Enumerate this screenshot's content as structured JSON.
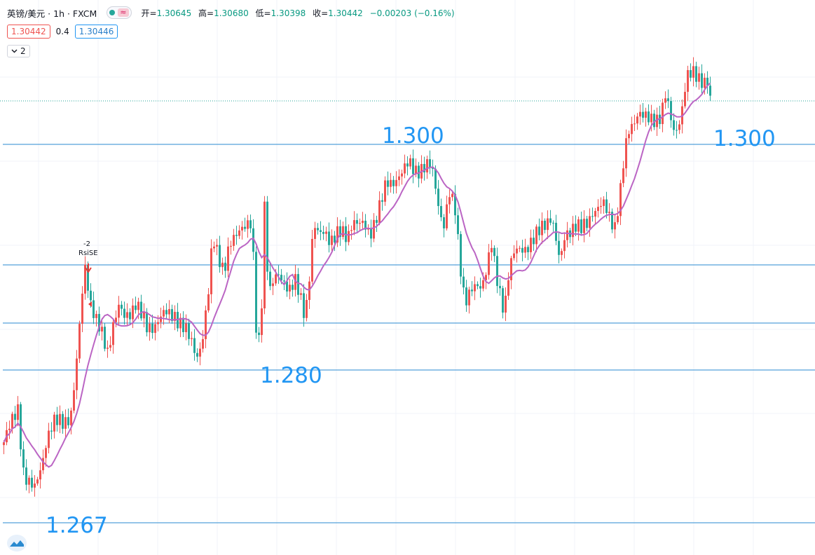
{
  "legend": {
    "symbol": "英镑/美元 · 1h · FXCM",
    "open_label": "开=",
    "open": "1.30645",
    "high_label": "高=",
    "high": "1.30680",
    "low_label": "低=",
    "low": "1.30398",
    "close_label": "收=",
    "close": "1.30442",
    "change": "−0.00203 (−0.16%)",
    "wave_icon": "≈"
  },
  "quotes": {
    "bid": "1.30442",
    "spread": "0.4",
    "ask": "1.30446"
  },
  "indicators_toggle": {
    "count": "2",
    "icon": "chevron-down-icon"
  },
  "level_labels": [
    {
      "text": "1.300"
    },
    {
      "text": "1.300"
    },
    {
      "text": "1.280"
    },
    {
      "text": "1.267"
    }
  ],
  "signal": {
    "value": "-2",
    "name": "RsiSE"
  },
  "colors": {
    "up": "#ef5350",
    "down": "#26a69a",
    "ma": "#bb65c4",
    "hline": "#2a8ad0",
    "label": "#2196f3",
    "priceline": "#26a69a"
  },
  "chart_data": {
    "type": "candlestick",
    "symbol": "英镑/美元",
    "interval": "1h",
    "horizontal_levels": [
      1.2667,
      1.2798,
      1.2812,
      1.2839,
      1.2935
    ],
    "current_price": 1.30442,
    "candles_count": 280,
    "ma_series": "moving-average"
  }
}
